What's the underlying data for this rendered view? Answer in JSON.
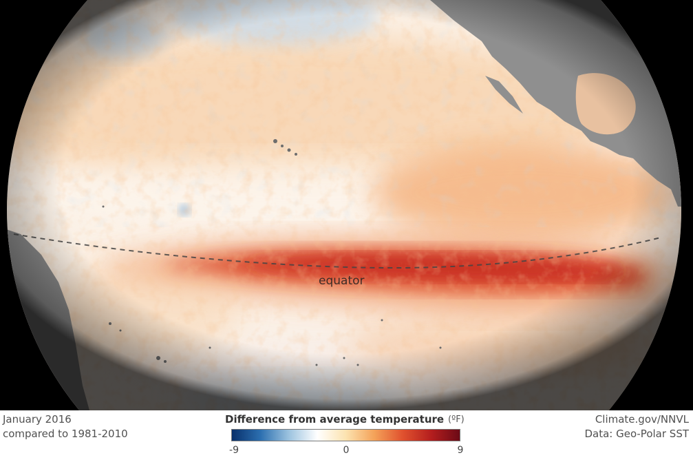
{
  "map": {
    "equator_label": "equator"
  },
  "footer": {
    "date": "January 2016",
    "baseline": "compared to 1981-2010",
    "credit": "Climate.gov/NNVL",
    "data_source": "Data: Geo-Polar SST"
  },
  "legend": {
    "title": "Difference from average temperature",
    "unit": "(ºF)",
    "min_label": "-9",
    "mid_label": "0",
    "max_label": "9",
    "min": -9,
    "max": 9,
    "colors": [
      "#08306b",
      "#2c6fb0",
      "#9cc3df",
      "#ffffff",
      "#fce3b0",
      "#f4a259",
      "#e0512e",
      "#b41e1e",
      "#6b0a16"
    ]
  }
}
